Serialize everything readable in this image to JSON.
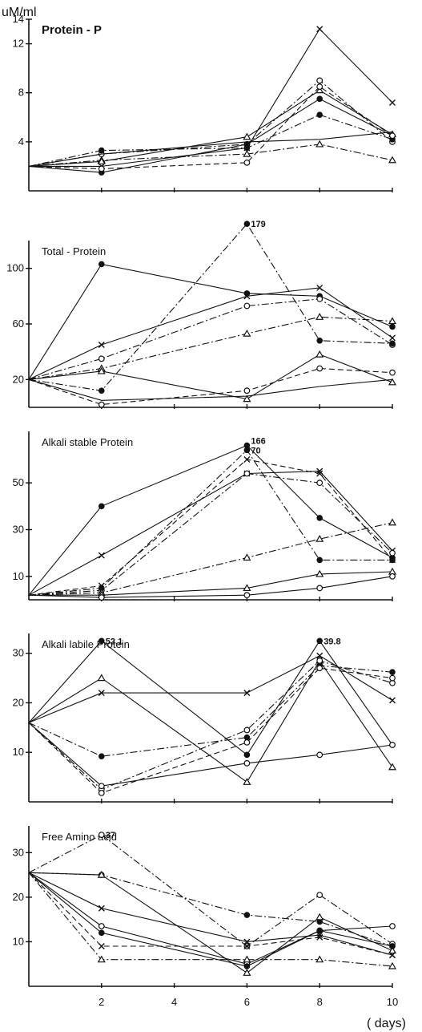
{
  "figure": {
    "unit_label": "uM/ml",
    "x_unit_label": "( days)",
    "x_tick_labels": [
      "2",
      "4",
      "6",
      "8",
      "10"
    ]
  },
  "chart_data": [
    {
      "type": "line",
      "title": "Protein - P",
      "xlabel": "",
      "ylabel": "uM/ml",
      "xlim": [
        0,
        10
      ],
      "ylim": [
        0,
        14
      ],
      "yticks": [
        4,
        8,
        12,
        14
      ],
      "ytick_labels": [
        "4",
        "8",
        "12",
        "14"
      ],
      "grid": false,
      "annotations": [],
      "series": [
        {
          "marker": "x",
          "dash": "solid",
          "x": [
            0,
            2,
            6,
            8,
            10
          ],
          "y": [
            2.0,
            2.0,
            3.5,
            13.2,
            7.2
          ]
        },
        {
          "marker": "open-circle",
          "dash": "dashdot",
          "x": [
            0,
            2,
            6,
            8,
            10
          ],
          "y": [
            2.0,
            3.0,
            3.8,
            9.0,
            4.0
          ]
        },
        {
          "marker": "filled-circle",
          "dash": "solid",
          "x": [
            0,
            2,
            6,
            8,
            10
          ],
          "y": [
            2.0,
            1.5,
            3.8,
            7.5,
            4.5
          ]
        },
        {
          "marker": "filled-circle",
          "dash": "dashdot",
          "x": [
            0,
            2,
            6,
            8,
            10
          ],
          "y": [
            2.0,
            3.3,
            3.5,
            6.2,
            4.2
          ]
        },
        {
          "marker": "triangle",
          "dash": "dashdot",
          "x": [
            0,
            2,
            6,
            8,
            10
          ],
          "y": [
            2.0,
            2.5,
            3.0,
            3.8,
            2.5
          ]
        },
        {
          "marker": "triangle",
          "dash": "solid",
          "x": [
            0,
            2,
            6,
            8,
            10
          ],
          "y": [
            2.0,
            2.4,
            4.4,
            8.2,
            4.6
          ]
        },
        {
          "marker": "open-circle",
          "dash": "dashed",
          "x": [
            0,
            2,
            6,
            8,
            10
          ],
          "y": [
            2.0,
            1.8,
            2.3,
            8.5,
            4.5
          ]
        },
        {
          "marker": "none",
          "dash": "solid",
          "x": [
            0,
            2,
            6,
            8,
            10
          ],
          "y": [
            2.0,
            3.0,
            4.0,
            4.2,
            4.8
          ]
        }
      ]
    },
    {
      "type": "line",
      "title": "Total - Protein",
      "xlabel": "",
      "ylabel": "",
      "xlim": [
        0,
        10
      ],
      "ylim": [
        0,
        120
      ],
      "yticks": [
        20,
        60,
        100
      ],
      "ytick_labels": [
        "20",
        "60",
        "100"
      ],
      "grid": false,
      "annotations": [
        {
          "text": "179",
          "x": 6,
          "y": 132
        }
      ],
      "series": [
        {
          "marker": "filled-circle",
          "dash": "solid",
          "x": [
            0,
            2,
            6,
            8,
            10
          ],
          "y": [
            20,
            103,
            82,
            80,
            58
          ]
        },
        {
          "marker": "x",
          "dash": "solid",
          "x": [
            0,
            2,
            6,
            8,
            10
          ],
          "y": [
            20,
            45,
            80,
            86,
            50
          ]
        },
        {
          "marker": "open-circle",
          "dash": "dashdot",
          "x": [
            0,
            2,
            6,
            8,
            10
          ],
          "y": [
            20,
            35,
            73,
            78,
            45
          ]
        },
        {
          "marker": "triangle",
          "dash": "dashdot",
          "x": [
            0,
            2,
            6,
            8,
            10
          ],
          "y": [
            20,
            28,
            53,
            65,
            62
          ]
        },
        {
          "marker": "filled-circle",
          "dash": "dashdot",
          "x": [
            0,
            2,
            6,
            8,
            10
          ],
          "y": [
            20,
            12,
            132,
            48,
            46
          ]
        },
        {
          "marker": "open-circle",
          "dash": "dashed",
          "x": [
            0,
            2,
            6,
            8,
            10
          ],
          "y": [
            20,
            2,
            12,
            28,
            25
          ]
        },
        {
          "marker": "triangle",
          "dash": "solid",
          "x": [
            0,
            2,
            6,
            8,
            10
          ],
          "y": [
            20,
            26,
            6,
            38,
            18
          ]
        },
        {
          "marker": "none",
          "dash": "solid",
          "x": [
            0,
            2,
            6,
            8,
            10
          ],
          "y": [
            20,
            5,
            8,
            15,
            20
          ]
        }
      ]
    },
    {
      "type": "line",
      "title": "Alkali stable Protein",
      "xlabel": "",
      "ylabel": "",
      "xlim": [
        0,
        10
      ],
      "ylim": [
        0,
        72
      ],
      "yticks": [
        10,
        30,
        50
      ],
      "ytick_labels": [
        "10",
        "30",
        "50"
      ],
      "grid": false,
      "annotations": [
        {
          "text": "166",
          "x": 6,
          "y": 68
        },
        {
          "text": "70",
          "x": 6,
          "y": 64
        }
      ],
      "series": [
        {
          "marker": "filled-circle",
          "dash": "solid",
          "x": [
            0,
            2,
            6,
            8,
            10
          ],
          "y": [
            2,
            40,
            66,
            35,
            18
          ]
        },
        {
          "marker": "x",
          "dash": "solid",
          "x": [
            0,
            2,
            6,
            8,
            10
          ],
          "y": [
            2,
            19,
            54,
            55,
            21
          ]
        },
        {
          "marker": "open-circle",
          "dash": "dashdot",
          "x": [
            0,
            2,
            6,
            8,
            10
          ],
          "y": [
            2,
            4,
            54,
            50,
            20
          ]
        },
        {
          "marker": "filled-circle",
          "dash": "dashdot",
          "x": [
            0,
            2,
            6,
            8,
            10
          ],
          "y": [
            2,
            5,
            64,
            17,
            17
          ]
        },
        {
          "marker": "triangle",
          "dash": "dashdot",
          "x": [
            0,
            2,
            6,
            8,
            10
          ],
          "y": [
            2,
            3,
            18,
            26,
            33
          ]
        },
        {
          "marker": "triangle",
          "dash": "solid",
          "x": [
            0,
            2,
            6,
            8,
            10
          ],
          "y": [
            2,
            2,
            5,
            11,
            12
          ]
        },
        {
          "marker": "open-circle",
          "dash": "solid",
          "x": [
            0,
            2,
            6,
            8,
            10
          ],
          "y": [
            2,
            1,
            2,
            5,
            10
          ]
        },
        {
          "marker": "x",
          "dash": "dashed",
          "x": [
            0,
            2,
            6,
            8,
            10
          ],
          "y": [
            2,
            6,
            60,
            54,
            17
          ]
        }
      ]
    },
    {
      "type": "line",
      "title": "Alkali labile Protein",
      "xlabel": "",
      "ylabel": "",
      "xlim": [
        0,
        10
      ],
      "ylim": [
        0,
        34
      ],
      "yticks": [
        10,
        20,
        30
      ],
      "ytick_labels": [
        "10",
        "20",
        "30"
      ],
      "grid": false,
      "annotations": [
        {
          "text": "52.1",
          "x": 2,
          "y": 32.5
        },
        {
          "text": "39.8",
          "x": 8,
          "y": 32.5
        }
      ],
      "series": [
        {
          "marker": "filled-circle",
          "dash": "solid",
          "x": [
            0,
            2,
            6,
            8,
            10
          ],
          "y": [
            16,
            32.5,
            9.5,
            32.5,
            11.5
          ]
        },
        {
          "marker": "triangle",
          "dash": "solid",
          "x": [
            0,
            2,
            6,
            8,
            10
          ],
          "y": [
            16,
            25,
            4,
            28.5,
            7
          ]
        },
        {
          "marker": "x",
          "dash": "solid",
          "x": [
            0,
            2,
            6,
            8,
            10
          ],
          "y": [
            16,
            22,
            22,
            29.5,
            20.5
          ]
        },
        {
          "marker": "filled-circle",
          "dash": "dashdot",
          "x": [
            0,
            2,
            6,
            8,
            10
          ],
          "y": [
            16,
            9.2,
            13,
            27.5,
            26.2
          ]
        },
        {
          "marker": "open-circle",
          "dash": "dashdot",
          "x": [
            0,
            2,
            6,
            8,
            10
          ],
          "y": [
            16,
            2.5,
            14.5,
            28.5,
            24
          ]
        },
        {
          "marker": "open-circle",
          "dash": "solid",
          "x": [
            0,
            2,
            6,
            8,
            10
          ],
          "y": [
            16,
            3.2,
            7.8,
            9.5,
            11.5
          ]
        },
        {
          "marker": "open-circle",
          "dash": "dashed",
          "x": [
            0,
            2,
            6,
            8,
            10
          ],
          "y": [
            16,
            1.8,
            12,
            27,
            25
          ]
        }
      ]
    },
    {
      "type": "line",
      "title": "Free Amino acid",
      "xlabel": "days",
      "ylabel": "",
      "xlim": [
        0,
        10
      ],
      "ylim": [
        0,
        36
      ],
      "yticks": [
        10,
        20,
        30
      ],
      "ytick_labels": [
        "10",
        "20",
        "30"
      ],
      "grid": false,
      "annotations": [
        {
          "text": "37",
          "x": 2,
          "y": 34
        }
      ],
      "series": [
        {
          "marker": "open-circle",
          "dash": "dashdot",
          "x": [
            0,
            2,
            6,
            8,
            10
          ],
          "y": [
            25.5,
            34,
            9,
            20.5,
            9.5
          ]
        },
        {
          "marker": "filled-circle",
          "dash": "dashdot",
          "x": [
            0,
            2,
            6,
            8,
            10
          ],
          "y": [
            25.5,
            25,
            16,
            14.5,
            9
          ]
        },
        {
          "marker": "triangle",
          "dash": "solid",
          "x": [
            0,
            2,
            6,
            8,
            10
          ],
          "y": [
            25.5,
            25,
            3,
            15.5,
            8
          ]
        },
        {
          "marker": "x",
          "dash": "solid",
          "x": [
            0,
            2,
            6,
            8,
            10
          ],
          "y": [
            25.5,
            17.5,
            10,
            11.5,
            7
          ]
        },
        {
          "marker": "open-circle",
          "dash": "solid",
          "x": [
            0,
            2,
            6,
            8,
            10
          ],
          "y": [
            25.5,
            13.5,
            5,
            12.5,
            13.5
          ]
        },
        {
          "marker": "filled-circle",
          "dash": "solid",
          "x": [
            0,
            2,
            6,
            8,
            10
          ],
          "y": [
            25.5,
            12,
            4.5,
            12.5,
            9
          ]
        },
        {
          "marker": "x",
          "dash": "dashed",
          "x": [
            0,
            2,
            6,
            8,
            10
          ],
          "y": [
            25.5,
            9,
            9,
            11,
            7
          ]
        },
        {
          "marker": "triangle",
          "dash": "dashdot",
          "x": [
            0,
            2,
            6,
            8,
            10
          ],
          "y": [
            25.5,
            6,
            6,
            6,
            4.5
          ]
        }
      ]
    }
  ]
}
